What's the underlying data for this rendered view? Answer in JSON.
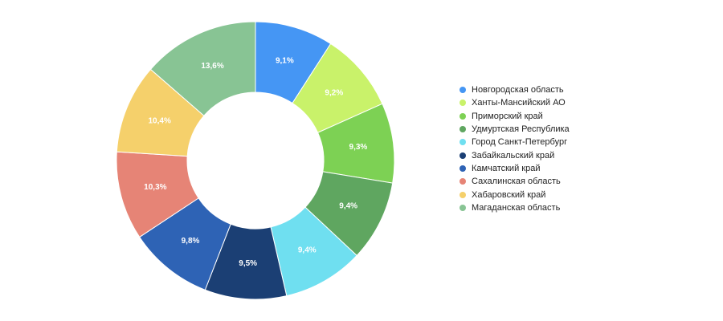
{
  "chart_data": {
    "type": "pie",
    "donut": true,
    "legend_position": "right",
    "categories": [
      "Новгородская область",
      "Ханты-Мансийский АО",
      "Приморский край",
      "Удмуртская Республика",
      "Город Санкт-Петербург",
      "Забайкальский край",
      "Камчатский край",
      "Сахалинская область",
      "Хабаровский край",
      "Магаданская область"
    ],
    "values": [
      9.1,
      9.2,
      9.3,
      9.4,
      9.4,
      9.5,
      9.8,
      10.3,
      10.4,
      13.6
    ],
    "value_labels": [
      "9,1%",
      "9,2%",
      "9,3%",
      "9,4%",
      "9,4%",
      "9,5%",
      "9,8%",
      "10,3%",
      "10,4%",
      "13,6%"
    ],
    "colors": [
      "#4596f4",
      "#c9f26a",
      "#7dd154",
      "#5fa660",
      "#6fdff0",
      "#1b3f74",
      "#2e63b5",
      "#e68476",
      "#f5d06b",
      "#88c494"
    ]
  }
}
